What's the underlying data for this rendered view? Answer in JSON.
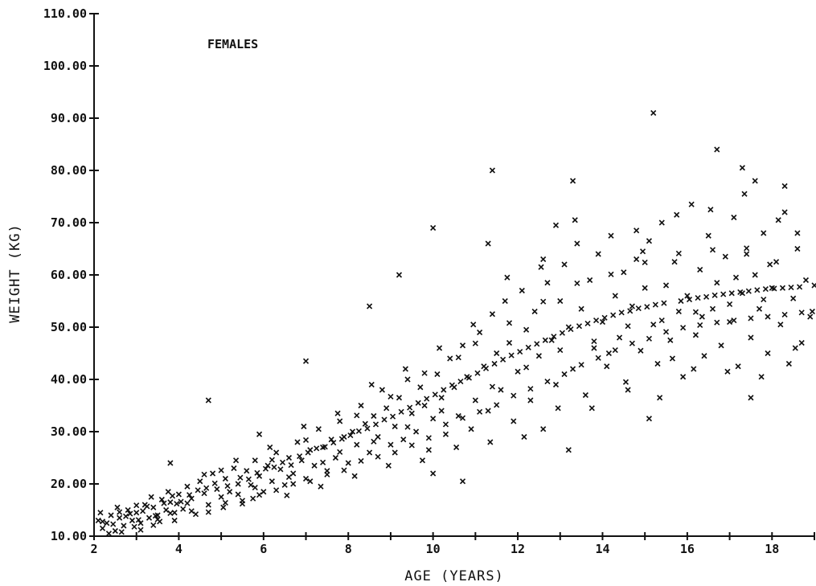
{
  "chart_data": {
    "type": "scatter",
    "title": "",
    "annotation": "FEMALES",
    "xlabel": "AGE  (YEARS)",
    "ylabel": "WEIGHT  (KG)",
    "xlim": [
      2,
      19
    ],
    "ylim": [
      10,
      110
    ],
    "x_ticks": [
      2,
      4,
      6,
      8,
      10,
      12,
      14,
      16,
      18
    ],
    "x_tick_labels": [
      "2",
      "4",
      "6",
      "8",
      "10",
      "12",
      "14",
      "16",
      "18"
    ],
    "y_ticks": [
      10,
      20,
      30,
      40,
      50,
      60,
      70,
      80,
      90,
      100,
      110
    ],
    "y_tick_labels": [
      "10.00",
      "20.00",
      "30.00",
      "40.00",
      "50.00",
      "60.00",
      "70.00",
      "80.00",
      "90.00",
      "100.00",
      "110.00"
    ],
    "marker": "x",
    "marker_color": "#111111",
    "grid": false,
    "points": [
      [
        4.7,
        36.0
      ],
      [
        7.0,
        43.5
      ],
      [
        8.5,
        54.0
      ],
      [
        9.2,
        60.0
      ],
      [
        10.0,
        69.0
      ],
      [
        11.4,
        80.0
      ],
      [
        15.2,
        91.0
      ],
      [
        13.3,
        78.0
      ],
      [
        16.7,
        84.0
      ],
      [
        17.3,
        80.5
      ],
      [
        17.6,
        78.0
      ],
      [
        18.3,
        77.0
      ],
      [
        18.6,
        68.0
      ],
      [
        15.1,
        32.5
      ],
      [
        17.5,
        36.5
      ],
      [
        13.2,
        26.5
      ],
      [
        10.0,
        22.0
      ],
      [
        10.7,
        20.5
      ],
      [
        3.8,
        24.0
      ],
      [
        5.9,
        29.5
      ],
      [
        12.9,
        69.5
      ],
      [
        11.3,
        66.0
      ],
      [
        12.6,
        63.0
      ],
      [
        14.8,
        68.5
      ],
      [
        2.1,
        13.0
      ],
      [
        2.2,
        11.5
      ],
      [
        2.3,
        12.5
      ],
      [
        2.4,
        14.0
      ],
      [
        2.5,
        11.0
      ],
      [
        2.6,
        13.5
      ],
      [
        2.7,
        12.0
      ],
      [
        2.8,
        15.0
      ],
      [
        2.9,
        13.0
      ],
      [
        3.0,
        14.5
      ],
      [
        3.1,
        12.5
      ],
      [
        3.2,
        16.0
      ],
      [
        3.3,
        13.5
      ],
      [
        3.4,
        15.5
      ],
      [
        3.5,
        14.0
      ],
      [
        3.6,
        17.0
      ],
      [
        3.7,
        15.0
      ],
      [
        3.8,
        16.5
      ],
      [
        3.9,
        14.5
      ],
      [
        4.0,
        18.0
      ],
      [
        2.15,
        14.5
      ],
      [
        2.35,
        10.5
      ],
      [
        2.55,
        15.5
      ],
      [
        2.75,
        13.8
      ],
      [
        2.95,
        11.8
      ],
      [
        3.15,
        14.8
      ],
      [
        3.35,
        17.5
      ],
      [
        3.55,
        12.8
      ],
      [
        3.75,
        18.5
      ],
      [
        3.95,
        16.2
      ],
      [
        4.1,
        15.2
      ],
      [
        4.2,
        19.5
      ],
      [
        4.3,
        17.2
      ],
      [
        4.4,
        14.2
      ],
      [
        4.5,
        20.5
      ],
      [
        4.6,
        18.2
      ],
      [
        4.7,
        16.0
      ],
      [
        4.8,
        22.0
      ],
      [
        4.9,
        19.0
      ],
      [
        5.0,
        17.5
      ],
      [
        5.1,
        21.0
      ],
      [
        5.2,
        18.5
      ],
      [
        5.3,
        23.0
      ],
      [
        5.4,
        20.0
      ],
      [
        5.5,
        16.8
      ],
      [
        5.6,
        22.5
      ],
      [
        5.7,
        19.8
      ],
      [
        5.8,
        24.5
      ],
      [
        5.9,
        21.5
      ],
      [
        6.0,
        18.5
      ],
      [
        6.1,
        23.5
      ],
      [
        6.2,
        20.5
      ],
      [
        6.3,
        26.0
      ],
      [
        6.4,
        22.8
      ],
      [
        6.5,
        19.8
      ],
      [
        6.6,
        25.0
      ],
      [
        6.7,
        22.0
      ],
      [
        6.8,
        28.0
      ],
      [
        6.9,
        24.5
      ],
      [
        7.0,
        21.0
      ],
      [
        7.1,
        26.5
      ],
      [
        7.2,
        23.5
      ],
      [
        7.3,
        30.5
      ],
      [
        7.4,
        27.0
      ],
      [
        7.5,
        22.5
      ],
      [
        7.6,
        28.5
      ],
      [
        7.7,
        25.0
      ],
      [
        7.8,
        32.0
      ],
      [
        7.9,
        29.0
      ],
      [
        8.0,
        24.0
      ],
      [
        8.1,
        30.0
      ],
      [
        8.2,
        27.5
      ],
      [
        8.3,
        35.0
      ],
      [
        8.4,
        31.5
      ],
      [
        8.5,
        26.0
      ],
      [
        8.6,
        33.0
      ],
      [
        8.7,
        29.0
      ],
      [
        8.8,
        38.0
      ],
      [
        8.9,
        34.5
      ],
      [
        9.0,
        27.5
      ],
      [
        9.1,
        31.0
      ],
      [
        9.2,
        36.5
      ],
      [
        9.3,
        28.5
      ],
      [
        9.4,
        40.0
      ],
      [
        9.5,
        33.5
      ],
      [
        9.6,
        30.0
      ],
      [
        9.7,
        38.5
      ],
      [
        9.8,
        35.0
      ],
      [
        9.9,
        26.5
      ],
      [
        10.0,
        32.5
      ],
      [
        10.1,
        41.0
      ],
      [
        10.2,
        36.5
      ],
      [
        10.3,
        29.5
      ],
      [
        10.4,
        44.0
      ],
      [
        10.5,
        38.5
      ],
      [
        10.6,
        33.0
      ],
      [
        10.7,
        46.5
      ],
      [
        10.8,
        40.5
      ],
      [
        10.9,
        30.5
      ],
      [
        11.0,
        36.0
      ],
      [
        11.1,
        49.0
      ],
      [
        11.2,
        42.5
      ],
      [
        11.3,
        34.0
      ],
      [
        11.4,
        52.5
      ],
      [
        11.5,
        45.0
      ],
      [
        11.6,
        38.0
      ],
      [
        11.7,
        55.0
      ],
      [
        11.8,
        47.0
      ],
      [
        11.9,
        32.0
      ],
      [
        12.0,
        41.5
      ],
      [
        12.1,
        57.0
      ],
      [
        12.2,
        49.5
      ],
      [
        12.3,
        36.0
      ],
      [
        12.4,
        53.0
      ],
      [
        12.5,
        44.5
      ],
      [
        12.6,
        30.5
      ],
      [
        12.7,
        58.5
      ],
      [
        12.8,
        47.5
      ],
      [
        12.9,
        39.0
      ],
      [
        13.0,
        55.0
      ],
      [
        13.1,
        62.0
      ],
      [
        13.2,
        50.0
      ],
      [
        13.3,
        42.0
      ],
      [
        13.4,
        66.0
      ],
      [
        13.5,
        53.5
      ],
      [
        13.6,
        37.0
      ],
      [
        13.7,
        59.0
      ],
      [
        13.8,
        46.0
      ],
      [
        13.9,
        64.0
      ],
      [
        14.0,
        51.0
      ],
      [
        14.1,
        42.5
      ],
      [
        14.2,
        67.5
      ],
      [
        14.3,
        56.0
      ],
      [
        14.4,
        48.0
      ],
      [
        14.5,
        60.5
      ],
      [
        14.6,
        38.0
      ],
      [
        14.7,
        54.0
      ],
      [
        14.8,
        63.0
      ],
      [
        14.9,
        45.5
      ],
      [
        15.0,
        57.5
      ],
      [
        15.1,
        66.5
      ],
      [
        15.2,
        50.5
      ],
      [
        15.3,
        43.0
      ],
      [
        15.4,
        70.0
      ],
      [
        15.5,
        58.0
      ],
      [
        15.6,
        47.5
      ],
      [
        15.7,
        62.5
      ],
      [
        15.8,
        53.0
      ],
      [
        15.9,
        40.5
      ],
      [
        16.0,
        56.0
      ],
      [
        16.1,
        73.5
      ],
      [
        16.2,
        48.5
      ],
      [
        16.3,
        61.0
      ],
      [
        16.4,
        44.5
      ],
      [
        16.5,
        67.5
      ],
      [
        16.6,
        53.5
      ],
      [
        16.7,
        58.5
      ],
      [
        16.8,
        46.5
      ],
      [
        16.9,
        63.5
      ],
      [
        17.0,
        51.0
      ],
      [
        17.1,
        71.0
      ],
      [
        17.2,
        42.5
      ],
      [
        17.3,
        56.5
      ],
      [
        17.4,
        64.0
      ],
      [
        17.5,
        48.0
      ],
      [
        17.6,
        60.0
      ],
      [
        17.7,
        53.5
      ],
      [
        17.8,
        68.0
      ],
      [
        17.9,
        45.0
      ],
      [
        18.0,
        57.5
      ],
      [
        18.1,
        62.5
      ],
      [
        18.2,
        50.5
      ],
      [
        18.3,
        72.0
      ],
      [
        18.4,
        43.0
      ],
      [
        18.5,
        55.5
      ],
      [
        18.6,
        65.0
      ],
      [
        18.7,
        47.0
      ],
      [
        18.8,
        59.0
      ],
      [
        18.9,
        52.0
      ],
      [
        19.0,
        58.0
      ],
      [
        5.05,
        15.5
      ],
      [
        5.35,
        24.5
      ],
      [
        5.75,
        17.2
      ],
      [
        6.15,
        27.0
      ],
      [
        6.55,
        17.8
      ],
      [
        6.95,
        31.0
      ],
      [
        7.35,
        19.5
      ],
      [
        7.75,
        33.5
      ],
      [
        8.15,
        21.5
      ],
      [
        8.55,
        39.0
      ],
      [
        8.95,
        23.5
      ],
      [
        9.35,
        42.0
      ],
      [
        9.75,
        24.5
      ],
      [
        10.15,
        46.0
      ],
      [
        10.55,
        27.0
      ],
      [
        10.95,
        50.5
      ],
      [
        11.35,
        28.0
      ],
      [
        11.75,
        59.5
      ],
      [
        12.15,
        29.0
      ],
      [
        12.55,
        61.5
      ],
      [
        12.95,
        34.5
      ],
      [
        13.35,
        70.5
      ],
      [
        13.75,
        34.5
      ],
      [
        14.15,
        45.0
      ],
      [
        14.55,
        39.5
      ],
      [
        14.95,
        64.5
      ],
      [
        15.35,
        36.5
      ],
      [
        15.75,
        71.5
      ],
      [
        16.15,
        42.0
      ],
      [
        16.55,
        72.5
      ],
      [
        16.95,
        41.5
      ],
      [
        17.35,
        75.5
      ],
      [
        17.75,
        40.5
      ],
      [
        18.15,
        70.5
      ],
      [
        18.55,
        46.0
      ],
      [
        18.95,
        53.0
      ],
      [
        15.65,
        44.0
      ],
      [
        16.35,
        52.0
      ],
      [
        17.15,
        59.5
      ],
      [
        17.95,
        62.0
      ],
      [
        2.45,
        12.3
      ],
      [
        2.65,
        10.8
      ],
      [
        2.85,
        14.3
      ],
      [
        3.05,
        13.1
      ],
      [
        3.25,
        15.7
      ],
      [
        3.45,
        13.9
      ],
      [
        3.65,
        16.3
      ],
      [
        3.85,
        17.7
      ],
      [
        4.05,
        16.6
      ],
      [
        4.25,
        17.9
      ],
      [
        4.45,
        18.8
      ],
      [
        4.65,
        19.2
      ],
      [
        4.85,
        20.1
      ],
      [
        5.15,
        19.6
      ],
      [
        5.45,
        21.2
      ],
      [
        5.65,
        20.9
      ],
      [
        5.85,
        22.1
      ],
      [
        6.05,
        22.9
      ],
      [
        6.25,
        23.2
      ],
      [
        6.45,
        24.1
      ],
      [
        6.65,
        23.6
      ],
      [
        6.85,
        25.3
      ],
      [
        7.05,
        26.0
      ],
      [
        7.25,
        26.8
      ],
      [
        7.45,
        27.1
      ],
      [
        7.65,
        27.9
      ],
      [
        7.85,
        28.6
      ],
      [
        8.05,
        29.3
      ],
      [
        8.25,
        30.1
      ],
      [
        8.45,
        30.6
      ],
      [
        8.65,
        31.4
      ],
      [
        8.85,
        32.3
      ],
      [
        9.05,
        32.9
      ],
      [
        9.25,
        33.8
      ],
      [
        9.45,
        34.6
      ],
      [
        9.65,
        35.5
      ],
      [
        9.85,
        36.3
      ],
      [
        10.05,
        37.1
      ],
      [
        10.25,
        38.0
      ],
      [
        10.45,
        38.9
      ],
      [
        10.65,
        39.6
      ],
      [
        10.85,
        40.3
      ],
      [
        11.05,
        41.2
      ],
      [
        11.25,
        42.1
      ],
      [
        11.45,
        43.0
      ],
      [
        11.65,
        43.8
      ],
      [
        11.85,
        44.6
      ],
      [
        12.05,
        45.3
      ],
      [
        12.25,
        46.1
      ],
      [
        12.45,
        46.8
      ],
      [
        12.65,
        47.5
      ],
      [
        12.85,
        48.2
      ],
      [
        13.05,
        48.9
      ],
      [
        13.25,
        49.6
      ],
      [
        13.45,
        50.2
      ],
      [
        13.65,
        50.7
      ],
      [
        13.85,
        51.3
      ],
      [
        14.05,
        51.8
      ],
      [
        14.25,
        52.3
      ],
      [
        14.45,
        52.8
      ],
      [
        14.65,
        53.1
      ],
      [
        14.85,
        53.6
      ],
      [
        15.05,
        53.9
      ],
      [
        15.25,
        54.3
      ],
      [
        15.45,
        54.6
      ],
      [
        15.85,
        55.0
      ],
      [
        16.05,
        55.3
      ],
      [
        16.25,
        55.6
      ],
      [
        16.45,
        55.8
      ],
      [
        16.65,
        56.1
      ],
      [
        16.85,
        56.3
      ],
      [
        17.05,
        56.5
      ],
      [
        17.25,
        56.7
      ],
      [
        17.45,
        56.9
      ],
      [
        17.65,
        57.1
      ],
      [
        17.85,
        57.3
      ],
      [
        18.05,
        57.4
      ],
      [
        18.25,
        57.5
      ],
      [
        18.45,
        57.6
      ],
      [
        18.65,
        57.7
      ],
      [
        3.1,
        11.2
      ],
      [
        3.5,
        13.2
      ],
      [
        3.9,
        13.0
      ],
      [
        4.3,
        14.8
      ],
      [
        4.7,
        14.6
      ],
      [
        5.1,
        16.4
      ],
      [
        5.5,
        16.2
      ],
      [
        5.9,
        17.9
      ],
      [
        6.3,
        18.8
      ],
      [
        6.7,
        20.0
      ],
      [
        7.1,
        20.5
      ],
      [
        7.5,
        21.8
      ],
      [
        7.9,
        22.6
      ],
      [
        8.3,
        24.4
      ],
      [
        8.7,
        25.2
      ],
      [
        9.1,
        26.0
      ],
      [
        9.5,
        27.4
      ],
      [
        9.9,
        28.8
      ],
      [
        10.3,
        31.4
      ],
      [
        10.7,
        32.6
      ],
      [
        11.1,
        33.8
      ],
      [
        11.5,
        35.1
      ],
      [
        11.9,
        36.9
      ],
      [
        12.3,
        38.2
      ],
      [
        12.7,
        39.6
      ],
      [
        13.1,
        41.0
      ],
      [
        13.5,
        42.8
      ],
      [
        13.9,
        44.1
      ],
      [
        14.3,
        45.6
      ],
      [
        14.7,
        46.9
      ],
      [
        15.1,
        47.8
      ],
      [
        15.5,
        49.1
      ],
      [
        15.9,
        49.9
      ],
      [
        16.3,
        50.4
      ],
      [
        16.7,
        50.9
      ],
      [
        17.1,
        51.3
      ],
      [
        17.5,
        51.7
      ],
      [
        17.9,
        52.0
      ],
      [
        18.3,
        52.4
      ],
      [
        18.7,
        52.8
      ],
      [
        2.2,
        12.8
      ],
      [
        2.6,
        14.6
      ],
      [
        3.0,
        15.9
      ],
      [
        3.4,
        12.1
      ],
      [
        3.8,
        14.4
      ],
      [
        4.2,
        16.3
      ],
      [
        4.6,
        21.8
      ],
      [
        5.0,
        22.6
      ],
      [
        5.4,
        18.0
      ],
      [
        5.8,
        19.3
      ],
      [
        6.2,
        24.6
      ],
      [
        6.6,
        21.3
      ],
      [
        7.0,
        28.4
      ],
      [
        7.4,
        24.1
      ],
      [
        7.8,
        26.1
      ],
      [
        8.2,
        33.1
      ],
      [
        8.6,
        28.1
      ],
      [
        9.0,
        36.7
      ],
      [
        9.4,
        30.9
      ],
      [
        9.8,
        41.2
      ],
      [
        10.2,
        34.0
      ],
      [
        10.6,
        44.2
      ],
      [
        11.0,
        46.9
      ],
      [
        11.4,
        38.6
      ],
      [
        11.8,
        50.8
      ],
      [
        12.2,
        42.3
      ],
      [
        12.6,
        54.9
      ],
      [
        13.0,
        45.6
      ],
      [
        13.4,
        58.4
      ],
      [
        13.8,
        47.3
      ],
      [
        14.2,
        60.1
      ],
      [
        14.6,
        50.2
      ],
      [
        15.0,
        62.4
      ],
      [
        15.4,
        51.3
      ],
      [
        15.8,
        64.1
      ],
      [
        16.2,
        52.9
      ],
      [
        16.6,
        64.8
      ],
      [
        17.0,
        54.4
      ],
      [
        17.4,
        65.1
      ],
      [
        17.8,
        55.3
      ]
    ]
  }
}
